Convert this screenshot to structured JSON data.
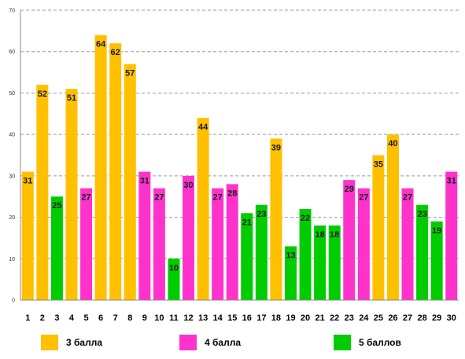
{
  "chart_data": {
    "type": "bar",
    "categories": [
      "1",
      "2",
      "3",
      "4",
      "5",
      "6",
      "7",
      "8",
      "9",
      "10",
      "11",
      "12",
      "13",
      "14",
      "15",
      "16",
      "17",
      "18",
      "19",
      "20",
      "21",
      "22",
      "23",
      "24",
      "25",
      "26",
      "27",
      "28",
      "29",
      "30"
    ],
    "values": [
      31,
      52,
      25,
      51,
      27,
      64,
      62,
      57,
      31,
      27,
      10,
      30,
      44,
      27,
      28,
      21,
      23,
      39,
      13,
      22,
      18,
      18,
      29,
      27,
      35,
      40,
      27,
      23,
      19,
      31
    ],
    "groups": [
      "3 балла",
      "3 балла",
      "5 баллов",
      "3 балла",
      "4 балла",
      "3 балла",
      "3 балла",
      "3 балла",
      "4 балла",
      "4 балла",
      "5 баллов",
      "4 балла",
      "3 балла",
      "4 балла",
      "4 балла",
      "5 баллов",
      "5 баллов",
      "3 балла",
      "5 баллов",
      "5 баллов",
      "5 баллов",
      "5 баллов",
      "4 балла",
      "4 балла",
      "3 балла",
      "3 балла",
      "4 балла",
      "5 баллов",
      "5 баллов",
      "4 балла"
    ],
    "series": [
      {
        "name": "3 балла",
        "color": "#FFC000"
      },
      {
        "name": "4 балла",
        "color": "#FF33CC"
      },
      {
        "name": "5 баллов",
        "color": "#00CC00"
      }
    ],
    "ylim": [
      0,
      70
    ],
    "yticks": [
      0,
      10,
      20,
      30,
      40,
      50,
      60,
      70
    ],
    "grid": true,
    "legend_position": "bottom",
    "data_labels": true
  }
}
